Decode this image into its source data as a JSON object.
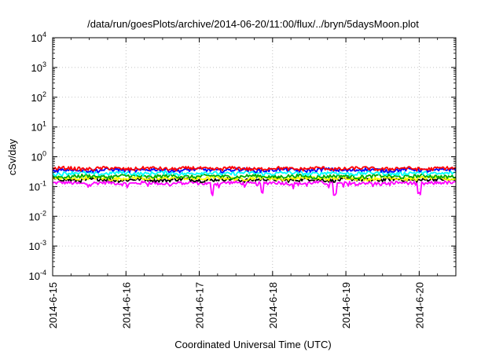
{
  "chart_data": {
    "type": "line",
    "title": "/data/run/goesPlots/archive/2014-06-20/11:00/flux/../bryn/5daysMoon.plot",
    "xlabel": "Coordinated Universal Time (UTC)",
    "ylabel": "cSv/day",
    "y_scale": "log",
    "ylim": [
      0.0001,
      10000
    ],
    "y_ticks": [
      {
        "base": "10",
        "exp": "-4"
      },
      {
        "base": "10",
        "exp": "-3"
      },
      {
        "base": "10",
        "exp": "-2"
      },
      {
        "base": "10",
        "exp": "-1"
      },
      {
        "base": "10",
        "exp": "0"
      },
      {
        "base": "10",
        "exp": "1"
      },
      {
        "base": "10",
        "exp": "2"
      },
      {
        "base": "10",
        "exp": "3"
      },
      {
        "base": "10",
        "exp": "4"
      }
    ],
    "xlim": [
      "2014-06-15 00:00",
      "2014-06-20 12:00"
    ],
    "x_ticks": [
      "2014-6-15",
      "2014-6-16",
      "2014-6-17",
      "2014-6-18",
      "2014-6-19",
      "2014-6-20"
    ],
    "grid": true,
    "series": [
      {
        "color": "#ff0000",
        "level": 0.4
      },
      {
        "color": "#0000ff",
        "level": 0.36
      },
      {
        "color": "#00ffff",
        "level": 0.28
      },
      {
        "color": "#00aa00",
        "level": 0.22
      },
      {
        "color": "#ffff00",
        "level": 0.19
      },
      {
        "color": "#000000",
        "level": 0.17
      },
      {
        "color": "#ff00ff",
        "level": 0.13
      }
    ]
  }
}
